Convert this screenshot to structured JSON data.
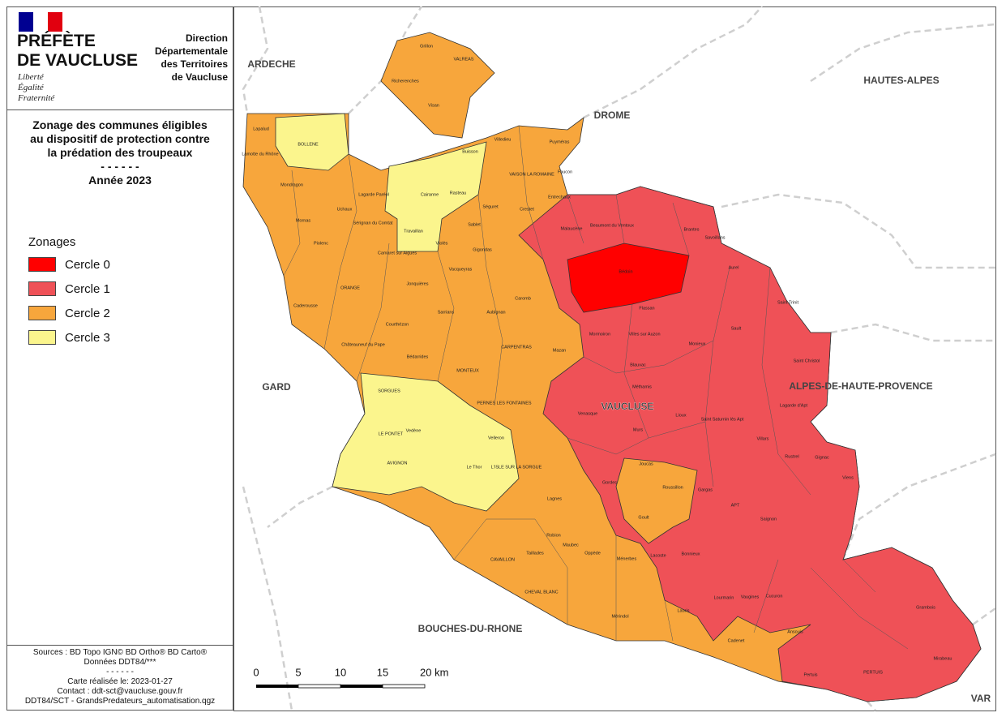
{
  "header": {
    "prefecture": [
      "PRÉFÈTE",
      "DE VAUCLUSE"
    ],
    "motto": [
      "Liberté",
      "Égalité",
      "Fraternité"
    ],
    "direction": [
      "Direction",
      "Départementale",
      "des Territoires",
      "de Vaucluse"
    ]
  },
  "title": [
    "Zonage des communes éligibles",
    "au dispositif de protection contre",
    "la prédation des troupeaux",
    "- - - - - -",
    "Année 2023"
  ],
  "legend": {
    "title": "Zonages",
    "items": [
      {
        "label": "Cercle 0",
        "color": "#ff0000"
      },
      {
        "label": "Cercle 1",
        "color": "#ef5157"
      },
      {
        "label": "Cercle 2",
        "color": "#f7a63c"
      },
      {
        "label": "Cercle 3",
        "color": "#fbf58d"
      }
    ]
  },
  "footer": [
    "Sources : BD Topo IGN© BD Ortho® BD Carto®",
    "Données DDT84/***",
    "- - - - - -",
    "Carte réalisée le: 2023-01-27",
    "Contact : ddt-sct@vaucluse.gouv.fr",
    "DDT84/SCT - GrandsPredateurs_automatisation.qgz"
  ],
  "map": {
    "regions": [
      "ARDECHE",
      "DROME",
      "HAUTES-ALPES",
      "GARD",
      "ALPES-DE-HAUTE-PROVENCE",
      "BOUCHES-DU-RHONE",
      "VAR",
      "VAUCLUSE"
    ],
    "communes": [
      "VALREAS",
      "Grillon",
      "Richerenches",
      "Visan",
      "Lapalud",
      "BOLLENE",
      "Lamotte du Rhône",
      "Mondragon",
      "Mornas",
      "Uchaux",
      "Lagarde Paréol",
      "Piolenc",
      "ORANGE",
      "Caderousse",
      "Sérignan du Comtat",
      "Camaret sur Aigues",
      "Travaillan",
      "Cairanne",
      "Rasteau",
      "Violès",
      "Jonquières",
      "Courthézon",
      "Sarrians",
      "Vacqueyras",
      "Gigondas",
      "Séguret",
      "Sablet",
      "VAISON LA ROMAINE",
      "Buisson",
      "Villedieu",
      "Puyméras",
      "Faucon",
      "Entrechaux",
      "Crestet",
      "Malaucène",
      "Beaumont du Ventoux",
      "Brantes",
      "Savoillans",
      "Bédoin",
      "Flassan",
      "Mormoiron",
      "Villes sur Auzon",
      "Blauvac",
      "Méthamis",
      "Monieux",
      "Sault",
      "Aurel",
      "Saint Trinit",
      "CARPENTRAS",
      "MONTEUX",
      "Mazan",
      "Châteauneuf du Pape",
      "Bédarrides",
      "SORGUES",
      "Vedène",
      "LE PONTET",
      "AVIGNON",
      "Le Thor",
      "Velleron",
      "PERNES LES FONTAINES",
      "CAVAILLON",
      "Gordes",
      "Roussillon",
      "APT",
      "Lioux",
      "Murs",
      "Gargas",
      "Viens",
      "PERTUIS",
      "Mirabeau",
      "Grambois",
      "Cadenet",
      "Lauris",
      "Mérindol",
      "CHEVAL BLANC",
      "Ménerbes",
      "Oppède",
      "Lacoste",
      "Bonnieux",
      "Lourmarin",
      "Cucuron",
      "Ansouis",
      "Vaugines",
      "Saignon",
      "Rustrel",
      "Gignac",
      "Villars",
      "Saint Saturnin lès Apt",
      "Lagarde d'Apt",
      "Saint Christol",
      "Venasque",
      "Caromb",
      "Aubignan",
      "L'ISLE SUR LA SORGUE",
      "Lagnes",
      "Robion",
      "Maubec",
      "Taillades",
      "Joucas",
      "Goult",
      "Pertuis"
    ]
  },
  "scale": [
    "0",
    "5",
    "10",
    "15",
    "20 km"
  ]
}
